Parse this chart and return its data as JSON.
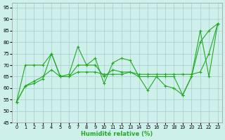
{
  "xlabel": "Humidité relative (%)",
  "background_color": "#cef0eb",
  "grid_color": "#aacccc",
  "line_color": "#22aa22",
  "xlim": [
    -0.5,
    23.5
  ],
  "ylim": [
    45,
    97
  ],
  "yticks": [
    45,
    50,
    55,
    60,
    65,
    70,
    75,
    80,
    85,
    90,
    95
  ],
  "xticks": [
    0,
    1,
    2,
    3,
    4,
    5,
    6,
    7,
    8,
    9,
    10,
    11,
    12,
    13,
    14,
    15,
    16,
    17,
    18,
    19,
    20,
    21,
    22,
    23
  ],
  "line1_x": [
    0,
    1,
    2,
    3,
    4,
    5,
    6,
    7,
    8,
    9,
    10,
    11,
    12,
    13,
    14,
    15,
    16,
    17,
    18,
    19,
    20,
    21,
    22,
    23
  ],
  "line1_y": [
    54,
    61,
    62,
    64,
    75,
    65,
    66,
    78,
    70,
    73,
    62,
    71,
    73,
    72,
    65,
    59,
    65,
    61,
    60,
    57,
    65,
    85,
    65,
    88
  ],
  "line2_x": [
    0,
    1,
    2,
    3,
    4,
    5,
    6,
    7,
    8,
    9,
    10,
    11,
    12,
    13,
    14,
    15,
    16,
    17,
    18,
    19,
    20,
    21,
    22,
    23
  ],
  "line2_y": [
    54,
    70,
    70,
    70,
    75,
    65,
    65,
    70,
    70,
    70,
    65,
    68,
    67,
    67,
    65,
    65,
    65,
    65,
    65,
    57,
    65,
    80,
    85,
    88
  ],
  "line3_x": [
    0,
    1,
    2,
    3,
    4,
    5,
    6,
    7,
    8,
    9,
    10,
    11,
    12,
    13,
    14,
    15,
    16,
    17,
    18,
    19,
    20,
    21,
    22,
    23
  ],
  "line3_y": [
    54,
    61,
    63,
    65,
    68,
    65,
    65,
    67,
    67,
    67,
    66,
    66,
    66,
    67,
    66,
    66,
    66,
    66,
    66,
    66,
    66,
    67,
    75,
    88
  ]
}
